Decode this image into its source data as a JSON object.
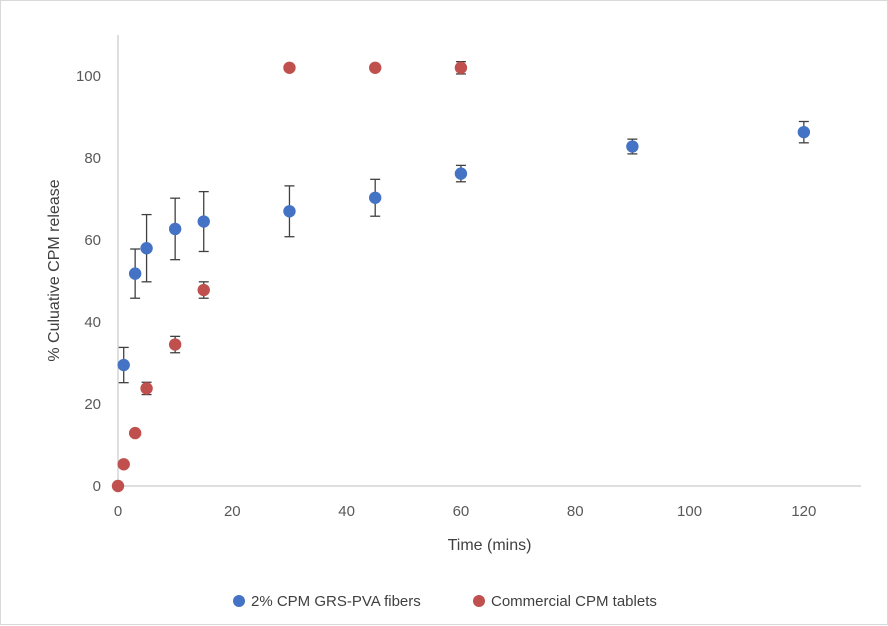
{
  "chart_data": {
    "type": "scatter",
    "title": "",
    "xlabel": "Time (mins)",
    "ylabel": "% Culuative CPM release",
    "xlim": [
      0,
      130
    ],
    "ylim": [
      0,
      110
    ],
    "x_ticks": [
      0,
      20,
      40,
      60,
      80,
      100,
      120
    ],
    "y_ticks": [
      0,
      20,
      40,
      60,
      80,
      100
    ],
    "grid": false,
    "legend_position": "bottom",
    "series": [
      {
        "name": "2% CPM GRS-PVA fibers",
        "color": "#4472c4",
        "points": [
          {
            "x": 1,
            "y": 29.5,
            "err": 4.3
          },
          {
            "x": 3,
            "y": 51.8,
            "err": 6.0
          },
          {
            "x": 5,
            "y": 58.0,
            "err": 8.2
          },
          {
            "x": 10,
            "y": 62.7,
            "err": 7.5
          },
          {
            "x": 15,
            "y": 64.5,
            "err": 7.3
          },
          {
            "x": 30,
            "y": 67.0,
            "err": 6.2
          },
          {
            "x": 45,
            "y": 70.3,
            "err": 4.5
          },
          {
            "x": 60,
            "y": 76.2,
            "err": 2.0
          },
          {
            "x": 90,
            "y": 82.8,
            "err": 1.8
          },
          {
            "x": 120,
            "y": 86.3,
            "err": 2.6
          }
        ]
      },
      {
        "name": "Commercial CPM tablets",
        "color": "#c0504d",
        "points": [
          {
            "x": 0,
            "y": 0,
            "err": 0
          },
          {
            "x": 1,
            "y": 5.3,
            "err": 0
          },
          {
            "x": 3,
            "y": 12.9,
            "err": 0
          },
          {
            "x": 5,
            "y": 23.8,
            "err": 1.5
          },
          {
            "x": 10,
            "y": 34.5,
            "err": 2.0
          },
          {
            "x": 15,
            "y": 47.8,
            "err": 2.0
          },
          {
            "x": 30,
            "y": 102,
            "err": 0
          },
          {
            "x": 45,
            "y": 102,
            "err": 0
          },
          {
            "x": 60,
            "y": 102,
            "err": 1.5
          }
        ]
      }
    ]
  }
}
